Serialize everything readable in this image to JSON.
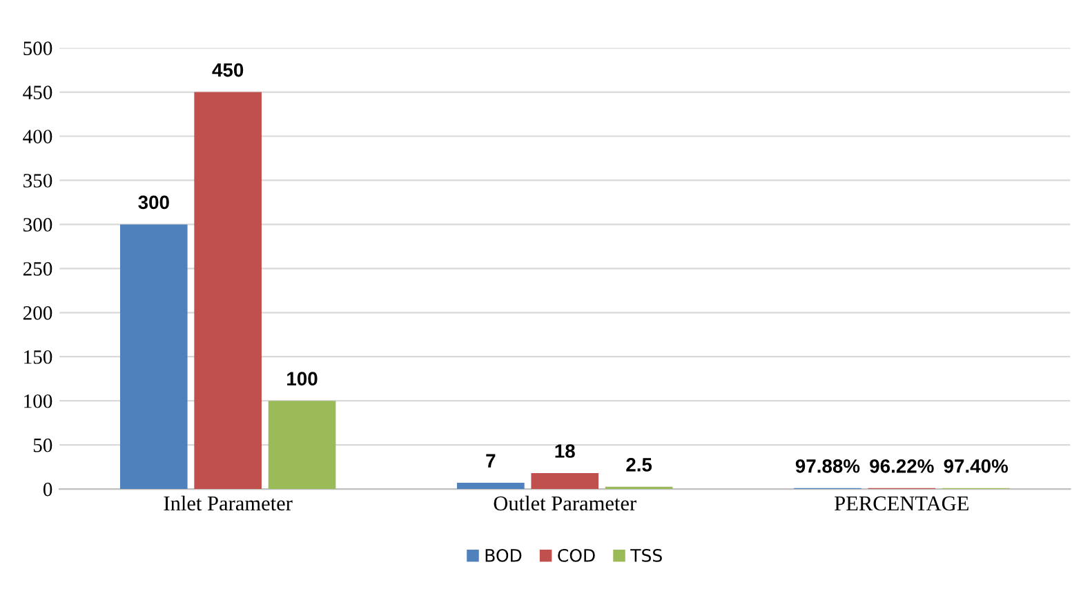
{
  "chart_data": {
    "type": "bar",
    "categories": [
      "Inlet Parameter",
      "Outlet Parameter",
      "PERCENTAGE"
    ],
    "series": [
      {
        "name": "BOD",
        "color": "#4f81bd",
        "values": [
          300,
          7,
          0.9788
        ],
        "value_labels": [
          "300",
          "7",
          "97.88%"
        ]
      },
      {
        "name": "COD",
        "color": "#c0504d",
        "values": [
          450,
          18,
          0.9622
        ],
        "value_labels": [
          "450",
          "18",
          "96.22%"
        ]
      },
      {
        "name": "TSS",
        "color": "#9bbb59",
        "values": [
          100,
          2.5,
          0.974
        ],
        "value_labels": [
          "100",
          "2.5",
          "97.40%"
        ]
      }
    ],
    "ylim": [
      0,
      500
    ],
    "yticks": [
      0,
      50,
      100,
      150,
      200,
      250,
      300,
      350,
      400,
      450,
      500
    ],
    "grid": "y",
    "legend": "bottom"
  }
}
